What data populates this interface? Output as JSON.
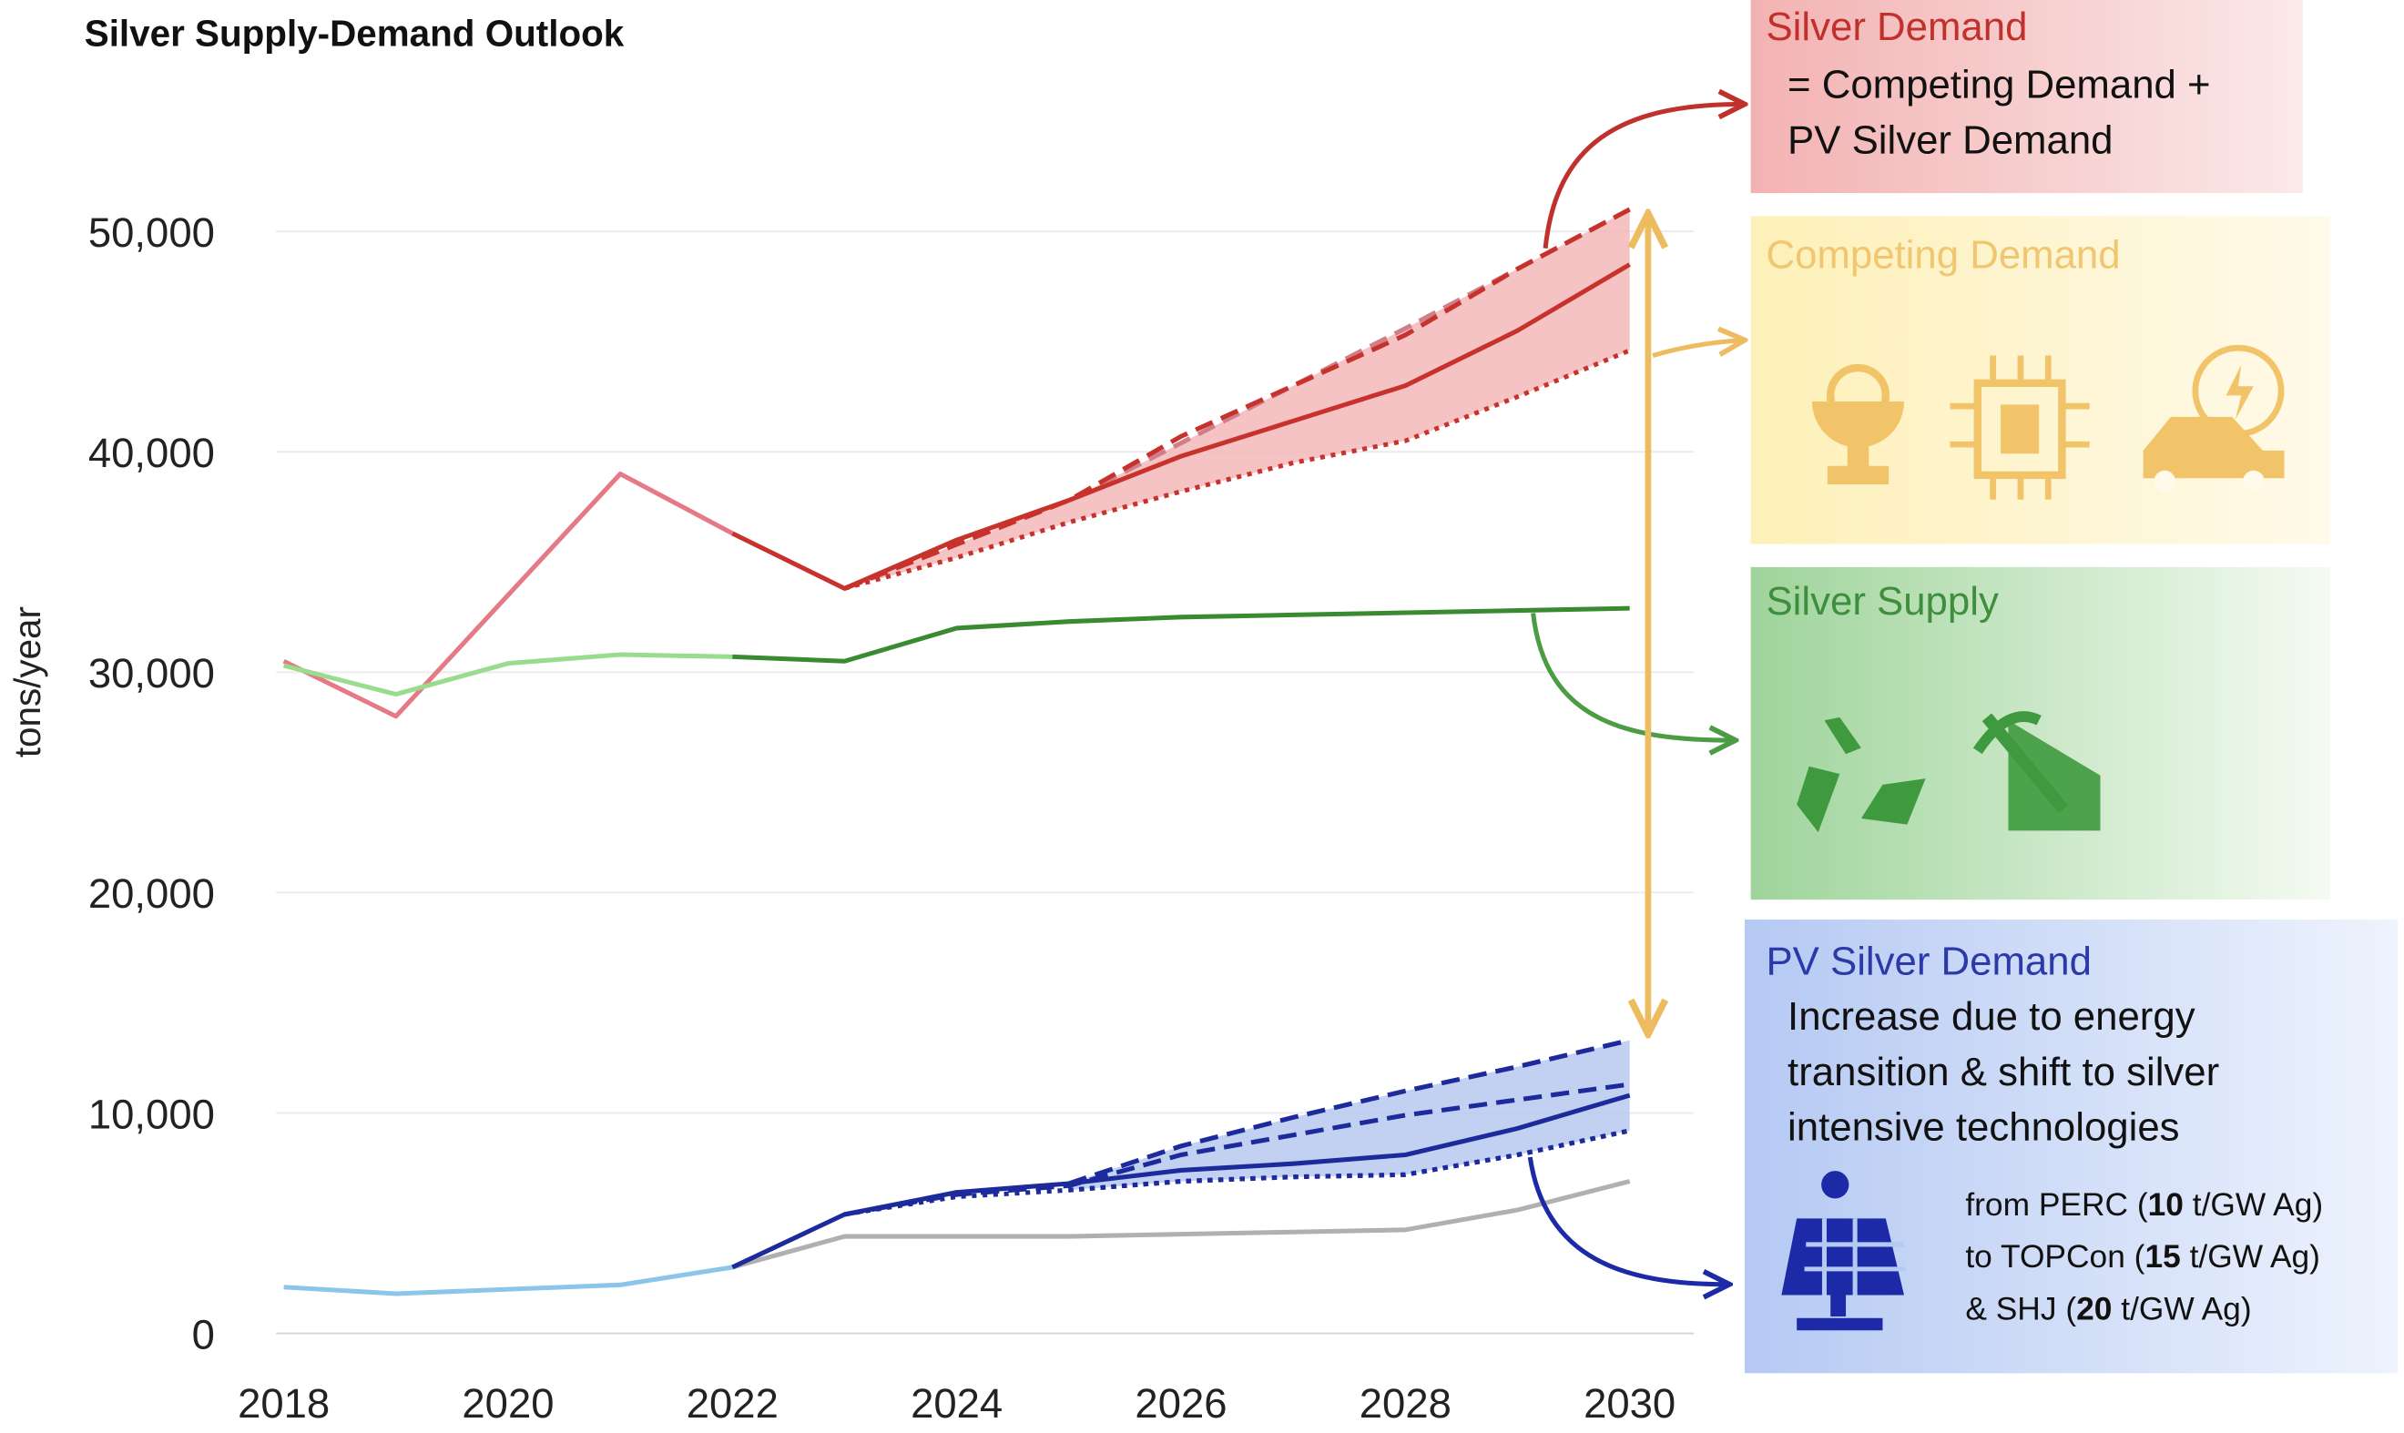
{
  "chart_data": {
    "type": "line",
    "title": "Silver Supply-Demand Outlook",
    "y_label": "tons/year",
    "x": [
      2018,
      2019,
      2020,
      2021,
      2022,
      2023,
      2024,
      2025,
      2026,
      2027,
      2028,
      2029,
      2030
    ],
    "xlim": [
      2018,
      2030
    ],
    "xticks": [
      2018,
      2020,
      2022,
      2024,
      2026,
      2028,
      2030
    ],
    "ylim": [
      0,
      50000
    ],
    "yticks": [
      0,
      {
        "value": 10000,
        "label": "10,000"
      },
      {
        "value": 20000,
        "label": "20,000"
      },
      {
        "value": 30000,
        "label": "30,000"
      },
      {
        "value": 40000,
        "label": "40,000"
      },
      {
        "value": 50000,
        "label": "50,000"
      }
    ],
    "grid": true,
    "series": [
      {
        "color": "#e57a86",
        "dash": "solid",
        "values": [
          30500,
          28000,
          33500,
          39000,
          36300,
          null,
          null,
          null,
          null,
          null,
          null,
          null,
          null
        ]
      },
      {
        "color": "#cf7f8a",
        "dash": "dashed",
        "fill": "#f3b9b9",
        "values": [
          null,
          null,
          null,
          null,
          null,
          33800,
          35800,
          37800,
          40400,
          43000,
          45600,
          48300,
          51000
        ]
      },
      {
        "color": "#c8322c",
        "dash": "dotted",
        "values": [
          null,
          null,
          null,
          null,
          null,
          33800,
          35200,
          36800,
          38200,
          39500,
          40500,
          42500,
          44600
        ]
      },
      {
        "color": "#c8322c",
        "dash": "dashed",
        "values": [
          null,
          null,
          null,
          null,
          null,
          33800,
          35800,
          37800,
          40700,
          43000,
          45300,
          48300,
          51000
        ]
      },
      {
        "color": "#c8322c",
        "dash": "solid",
        "values": [
          null,
          null,
          null,
          null,
          36300,
          33800,
          36000,
          37800,
          39800,
          41400,
          43000,
          45500,
          48500
        ]
      },
      {
        "color": "#99dc8e",
        "dash": "solid",
        "values": [
          30300,
          29000,
          30400,
          30800,
          30700,
          null,
          null,
          null,
          null,
          null,
          null,
          null,
          null
        ]
      },
      {
        "color": "#3a8a32",
        "dash": "solid",
        "values": [
          null,
          null,
          null,
          null,
          30700,
          30500,
          32000,
          32300,
          32500,
          32600,
          32700,
          32800,
          32900
        ]
      },
      {
        "color": "#b0b0b0",
        "dash": "solid",
        "values": [
          null,
          null,
          null,
          null,
          3000,
          4400,
          4400,
          4400,
          4500,
          4600,
          4700,
          5600,
          6900
        ]
      },
      {
        "color": "#8fa0d8",
        "dash": "dashed",
        "fill": "#b7c9f0",
        "values": [
          null,
          null,
          null,
          null,
          null,
          null,
          null,
          6800,
          8500,
          9800,
          11000,
          12100,
          13300
        ]
      },
      {
        "color": "#1c2a9c",
        "dash": "dotted",
        "values": [
          null,
          null,
          null,
          null,
          null,
          null,
          null,
          6500,
          6900,
          7100,
          7200,
          8100,
          9200
        ]
      },
      {
        "color": "#1c2a9c",
        "dash": "dashed",
        "values": [
          null,
          null,
          null,
          null,
          null,
          null,
          null,
          6800,
          8500,
          9800,
          11000,
          12100,
          13300
        ]
      },
      {
        "color": "#1c2a9c",
        "dash": "dashed",
        "values": [
          null,
          null,
          null,
          null,
          null,
          5400,
          6300,
          6700,
          8100,
          9000,
          9900,
          10600,
          11300
        ]
      },
      {
        "color": "#1c2a9c",
        "dash": "dotted",
        "values": [
          null,
          null,
          null,
          null,
          null,
          5400,
          6200,
          6500,
          6900,
          7100,
          7200,
          8100,
          9200
        ]
      },
      {
        "color": "#8cc4ea",
        "dash": "solid",
        "values": [
          2100,
          1800,
          2000,
          2200,
          3000,
          null,
          null,
          null,
          null,
          null,
          null,
          null,
          null
        ]
      },
      {
        "color": "#1c2a9c",
        "dash": "solid",
        "values": [
          null,
          null,
          null,
          null,
          3000,
          5400,
          6400,
          6800,
          7400,
          7700,
          8100,
          9300,
          10800
        ]
      }
    ]
  },
  "panels": {
    "demand": {
      "title": "Silver Demand",
      "lines": [
        "= Competing Demand +",
        "PV Silver Demand"
      ]
    },
    "competing": {
      "title": "Competing Demand"
    },
    "supply": {
      "title": "Silver Supply"
    },
    "pv": {
      "title": "PV Silver Demand",
      "lines": [
        "Increase due to energy",
        "transition & shift to silver",
        "intensive technologies"
      ],
      "tech": [
        {
          "before": "from PERC (",
          "bold": "10",
          "after": " t/GW Ag)"
        },
        {
          "before": "to TOPCon (",
          "bold": "15",
          "after": " t/GW Ag)"
        },
        {
          "before": "& SHJ (",
          "bold": "20",
          "after": " t/GW Ag)"
        }
      ]
    }
  }
}
